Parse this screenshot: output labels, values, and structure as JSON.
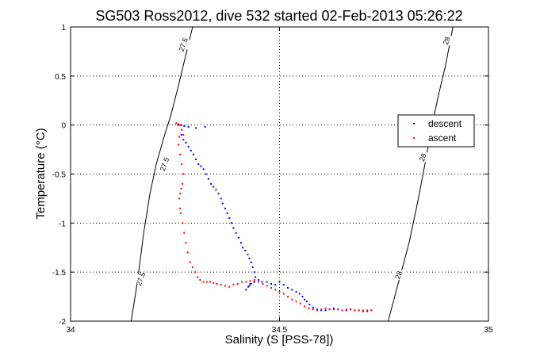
{
  "chart_data": {
    "type": "scatter",
    "title": "SG503 Ross2012, dive 532 started 02-Feb-2013 05:26:22",
    "xlabel": "Salinity (S [PSS-78])",
    "ylabel": "Temperature (°C)",
    "xlim": [
      34,
      35
    ],
    "ylim": [
      -2,
      1
    ],
    "x_ticks": [
      "34",
      "34.5",
      "35"
    ],
    "y_ticks": [
      "-2",
      "-1.5",
      "-1",
      "-0.5",
      "0",
      "0.5",
      "1"
    ],
    "grid": true,
    "legend_position": "right",
    "contours": [
      {
        "label": "27.5",
        "points": [
          [
            34.145,
            -2
          ],
          [
            34.16,
            -1.6
          ],
          [
            34.175,
            -1.1
          ],
          [
            34.19,
            -0.7
          ],
          [
            34.205,
            -0.4
          ],
          [
            34.225,
            -0.1
          ],
          [
            34.24,
            0.1
          ],
          [
            34.258,
            0.4
          ],
          [
            34.275,
            0.7
          ],
          [
            34.292,
            1
          ]
        ],
        "label_positions": [
          [
            34.27,
            0.82
          ],
          [
            34.225,
            -0.4
          ],
          [
            34.168,
            -1.57
          ]
        ]
      },
      {
        "label": "28",
        "points": [
          [
            34.76,
            -2
          ],
          [
            34.785,
            -1.6
          ],
          [
            34.81,
            -1.2
          ],
          [
            34.83,
            -0.8
          ],
          [
            34.848,
            -0.4
          ],
          [
            34.865,
            0
          ],
          [
            34.88,
            0.3
          ],
          [
            34.897,
            0.6
          ],
          [
            34.915,
            1
          ]
        ],
        "label_positions": [
          [
            34.9,
            0.86
          ],
          [
            34.843,
            -0.33
          ],
          [
            34.785,
            -1.53
          ]
        ]
      }
    ],
    "series": [
      {
        "name": "descent",
        "color": "#0000ff",
        "x": [
          34.257,
          34.265,
          34.272,
          34.282,
          34.3,
          34.322,
          34.265,
          34.27,
          34.276,
          34.282,
          34.288,
          34.294,
          34.3,
          34.306,
          34.312,
          34.318,
          34.324,
          34.33,
          34.336,
          34.342,
          34.348,
          34.354,
          34.36,
          34.364,
          34.37,
          34.375,
          34.38,
          34.385,
          34.39,
          34.396,
          34.402,
          34.408,
          34.412,
          34.418,
          34.424,
          34.428,
          34.432,
          34.436,
          34.44,
          34.442,
          34.439,
          34.43,
          34.425,
          34.42,
          34.428,
          34.432,
          34.44,
          34.45,
          34.458,
          34.47,
          34.48,
          34.49,
          34.5,
          34.51,
          34.52,
          34.53,
          34.54,
          34.548,
          34.555,
          34.56,
          34.565,
          34.572,
          34.58,
          34.59,
          34.6,
          34.61,
          34.62,
          34.63,
          34.64,
          34.65,
          34.66,
          34.67,
          34.68,
          34.69,
          34.7,
          34.71,
          34.72
        ],
        "y": [
          0.0,
          0.0,
          -0.01,
          -0.02,
          -0.03,
          -0.02,
          -0.1,
          -0.15,
          -0.18,
          -0.22,
          -0.26,
          -0.3,
          -0.35,
          -0.4,
          -0.42,
          -0.45,
          -0.5,
          -0.55,
          -0.6,
          -0.63,
          -0.66,
          -0.7,
          -0.75,
          -0.8,
          -0.85,
          -0.9,
          -0.95,
          -1.0,
          -1.05,
          -1.1,
          -1.15,
          -1.2,
          -1.25,
          -1.28,
          -1.32,
          -1.36,
          -1.4,
          -1.45,
          -1.5,
          -1.55,
          -1.6,
          -1.62,
          -1.65,
          -1.68,
          -1.64,
          -1.62,
          -1.6,
          -1.58,
          -1.6,
          -1.6,
          -1.62,
          -1.63,
          -1.6,
          -1.63,
          -1.66,
          -1.68,
          -1.7,
          -1.72,
          -1.75,
          -1.78,
          -1.8,
          -1.83,
          -1.86,
          -1.88,
          -1.89,
          -1.89,
          -1.88,
          -1.87,
          -1.88,
          -1.89,
          -1.89,
          -1.88,
          -1.89,
          -1.89,
          -1.9,
          -1.9,
          -1.89
        ]
      },
      {
        "name": "ascent",
        "color": "#ff0000",
        "x": [
          34.253,
          34.258,
          34.262,
          34.266,
          34.27,
          34.26,
          34.258,
          34.262,
          34.266,
          34.27,
          34.268,
          34.265,
          34.262,
          34.26,
          34.262,
          34.264,
          34.268,
          34.272,
          34.276,
          34.28,
          34.286,
          34.292,
          34.298,
          34.304,
          34.31,
          34.318,
          34.326,
          34.334,
          34.342,
          34.35,
          34.36,
          34.37,
          34.38,
          34.39,
          34.4,
          34.41,
          34.42,
          34.43,
          34.44,
          34.45,
          34.46,
          34.47,
          34.48,
          34.49,
          34.5,
          34.51,
          34.52,
          34.53,
          34.54,
          34.55,
          34.56,
          34.57,
          34.58,
          34.59,
          34.6,
          34.61,
          34.62,
          34.63,
          34.64,
          34.65,
          34.66,
          34.67,
          34.68,
          34.69,
          34.7,
          34.71,
          34.72
        ],
        "y": [
          0.02,
          0.01,
          0.0,
          -0.05,
          -0.1,
          -0.12,
          -0.2,
          -0.3,
          -0.4,
          -0.5,
          -0.6,
          -0.65,
          -0.7,
          -0.75,
          -0.85,
          -0.9,
          -1.0,
          -1.1,
          -1.2,
          -1.3,
          -1.4,
          -1.45,
          -1.5,
          -1.55,
          -1.58,
          -1.6,
          -1.6,
          -1.6,
          -1.61,
          -1.62,
          -1.63,
          -1.64,
          -1.65,
          -1.63,
          -1.62,
          -1.6,
          -1.6,
          -1.59,
          -1.58,
          -1.6,
          -1.62,
          -1.64,
          -1.66,
          -1.68,
          -1.7,
          -1.72,
          -1.75,
          -1.78,
          -1.8,
          -1.82,
          -1.85,
          -1.87,
          -1.88,
          -1.89,
          -1.88,
          -1.87,
          -1.88,
          -1.88,
          -1.88,
          -1.89,
          -1.88,
          -1.88,
          -1.89,
          -1.89,
          -1.89,
          -1.89,
          -1.89
        ]
      }
    ]
  }
}
